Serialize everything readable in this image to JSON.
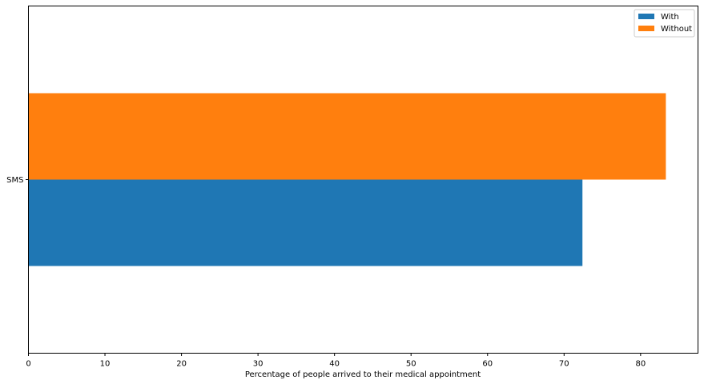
{
  "chart_data": {
    "type": "bar",
    "orientation": "horizontal",
    "categories": [
      "SMS"
    ],
    "series": [
      {
        "name": "With",
        "values": [
          72.4
        ],
        "color": "#1f77b4"
      },
      {
        "name": "Without",
        "values": [
          83.3
        ],
        "color": "#ff7f0e"
      }
    ],
    "xlabel": "Percentage of people arrived to their medical appointment",
    "ylabel": "",
    "xlim": [
      0,
      87.5
    ],
    "xticks": [
      0,
      10,
      20,
      30,
      40,
      50,
      60,
      70,
      80
    ],
    "grid": false,
    "legend_position": "top-right"
  }
}
